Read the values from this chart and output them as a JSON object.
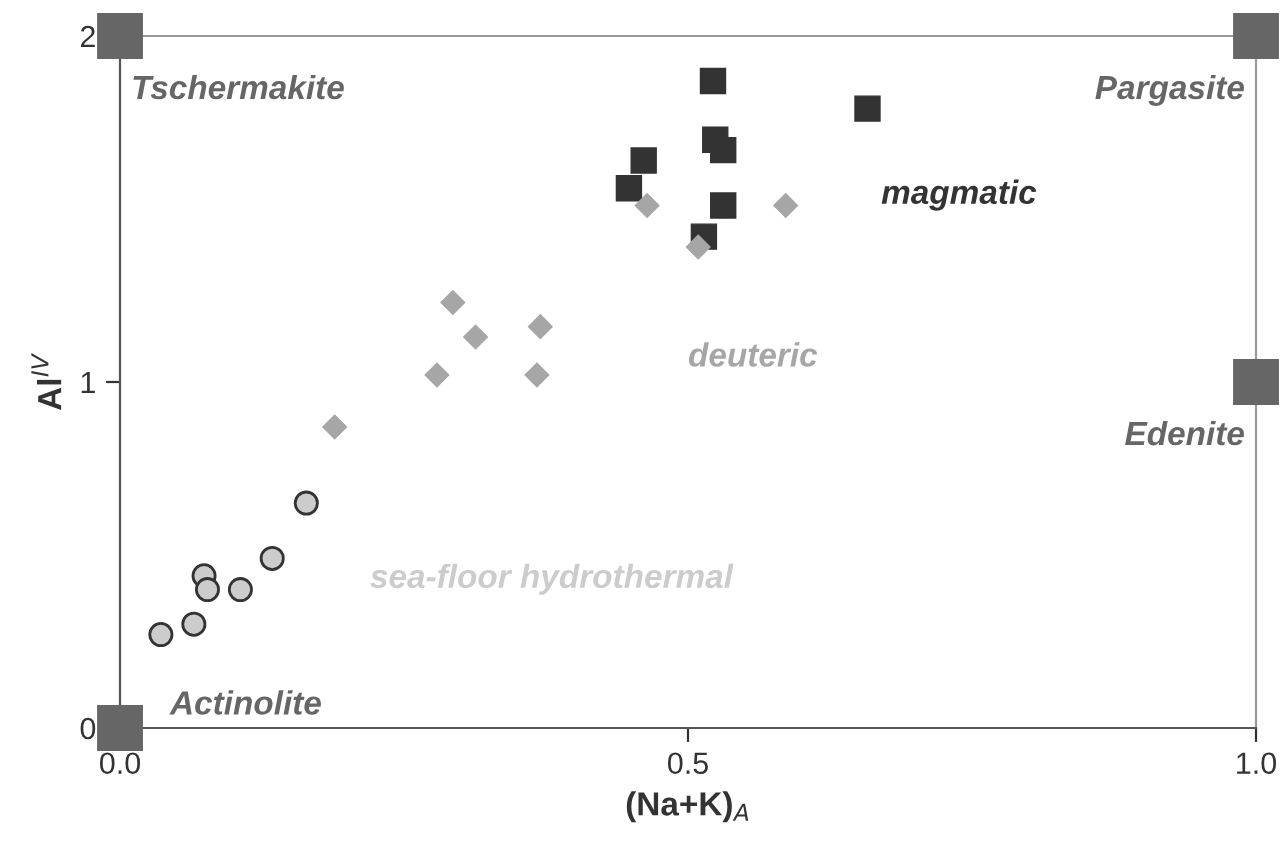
{
  "chart_data": {
    "type": "scatter",
    "xlabel": "(Na+K)$_{A}$",
    "ylabel": "Al$^{IV}$",
    "xlim": [
      0,
      1
    ],
    "ylim": [
      0,
      2
    ],
    "xticks": [
      {
        "value": 0,
        "label": "0.0"
      },
      {
        "value": 0.5,
        "label": "0.5"
      },
      {
        "value": 1,
        "label": "1.0"
      }
    ],
    "yticks": [
      0,
      1,
      2
    ],
    "grid": false,
    "legend": false,
    "series": [
      {
        "color": "#666666",
        "marker": "square",
        "x": [
          0,
          0,
          1,
          1
        ],
        "values": [
          0,
          2,
          2,
          1
        ],
        "value_labels": [
          "Actinolite",
          "Tschermakite",
          "Pargasite",
          "Edenite"
        ]
      },
      {
        "name": "magmatic",
        "color": "#333333",
        "marker": "square",
        "x": [
          0.522,
          0.658,
          0.524,
          0.531,
          0.461,
          0.448,
          0.531,
          0.514
        ],
        "values": [
          1.87,
          1.79,
          1.7,
          1.67,
          1.64,
          1.56,
          1.51,
          1.42
        ]
      },
      {
        "name": "deuteric",
        "color": "#a6a6a6",
        "marker": "diamond",
        "x": [
          0.189,
          0.279,
          0.293,
          0.313,
          0.367,
          0.37,
          0.464,
          0.586,
          0.509
        ],
        "values": [
          0.87,
          1.02,
          1.23,
          1.13,
          1.02,
          1.16,
          1.51,
          1.51,
          1.39
        ]
      },
      {
        "name": "sea-floor hydrothermal",
        "color": "#cccccc",
        "marker": "circle",
        "x": [
          0.036,
          0.065,
          0.074,
          0.077,
          0.106,
          0.134,
          0.164
        ],
        "values": [
          0.27,
          0.3,
          0.44,
          0.4,
          0.4,
          0.49,
          0.65
        ]
      }
    ]
  }
}
